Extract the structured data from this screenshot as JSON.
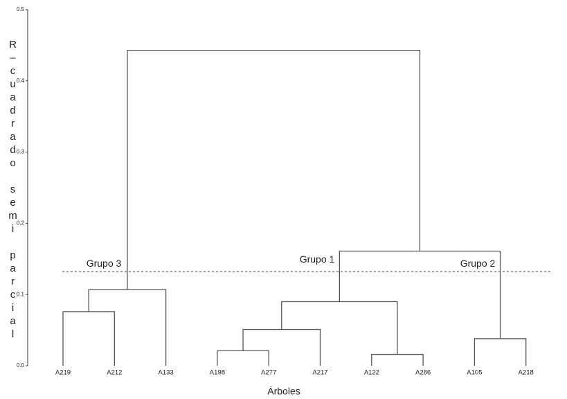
{
  "chart_data": {
    "type": "dendrogram",
    "y_label": "R–cuadrado semi parcial",
    "x_label": "Árboles",
    "leaves": [
      "A219",
      "A212",
      "A133",
      "A198",
      "A277",
      "A217",
      "A122",
      "A286",
      "A105",
      "A218"
    ],
    "merges": [
      {
        "children": [
          6,
          7
        ],
        "height": 0.016
      },
      {
        "children": [
          3,
          4
        ],
        "height": 0.021
      },
      {
        "children": [
          8,
          9
        ],
        "height": 0.038
      },
      {
        "children": [
          11,
          5
        ],
        "height": 0.051
      },
      {
        "children": [
          0,
          1
        ],
        "height": 0.076
      },
      {
        "children": [
          13,
          10
        ],
        "height": 0.09
      },
      {
        "children": [
          14,
          2
        ],
        "height": 0.107
      },
      {
        "children": [
          15,
          12
        ],
        "height": 0.161
      },
      {
        "children": [
          16,
          17
        ],
        "height": 0.443
      }
    ],
    "cut_height": 0.132,
    "annotations": [
      "Grupo 3",
      "Grupo 1",
      "Grupo 2"
    ],
    "ylim": [
      0,
      0.5
    ],
    "yticks": [
      {
        "value": 0,
        "label": "0.0"
      },
      0.1,
      0.2,
      0.3,
      0.4,
      0.5
    ],
    "color": "#555555"
  }
}
